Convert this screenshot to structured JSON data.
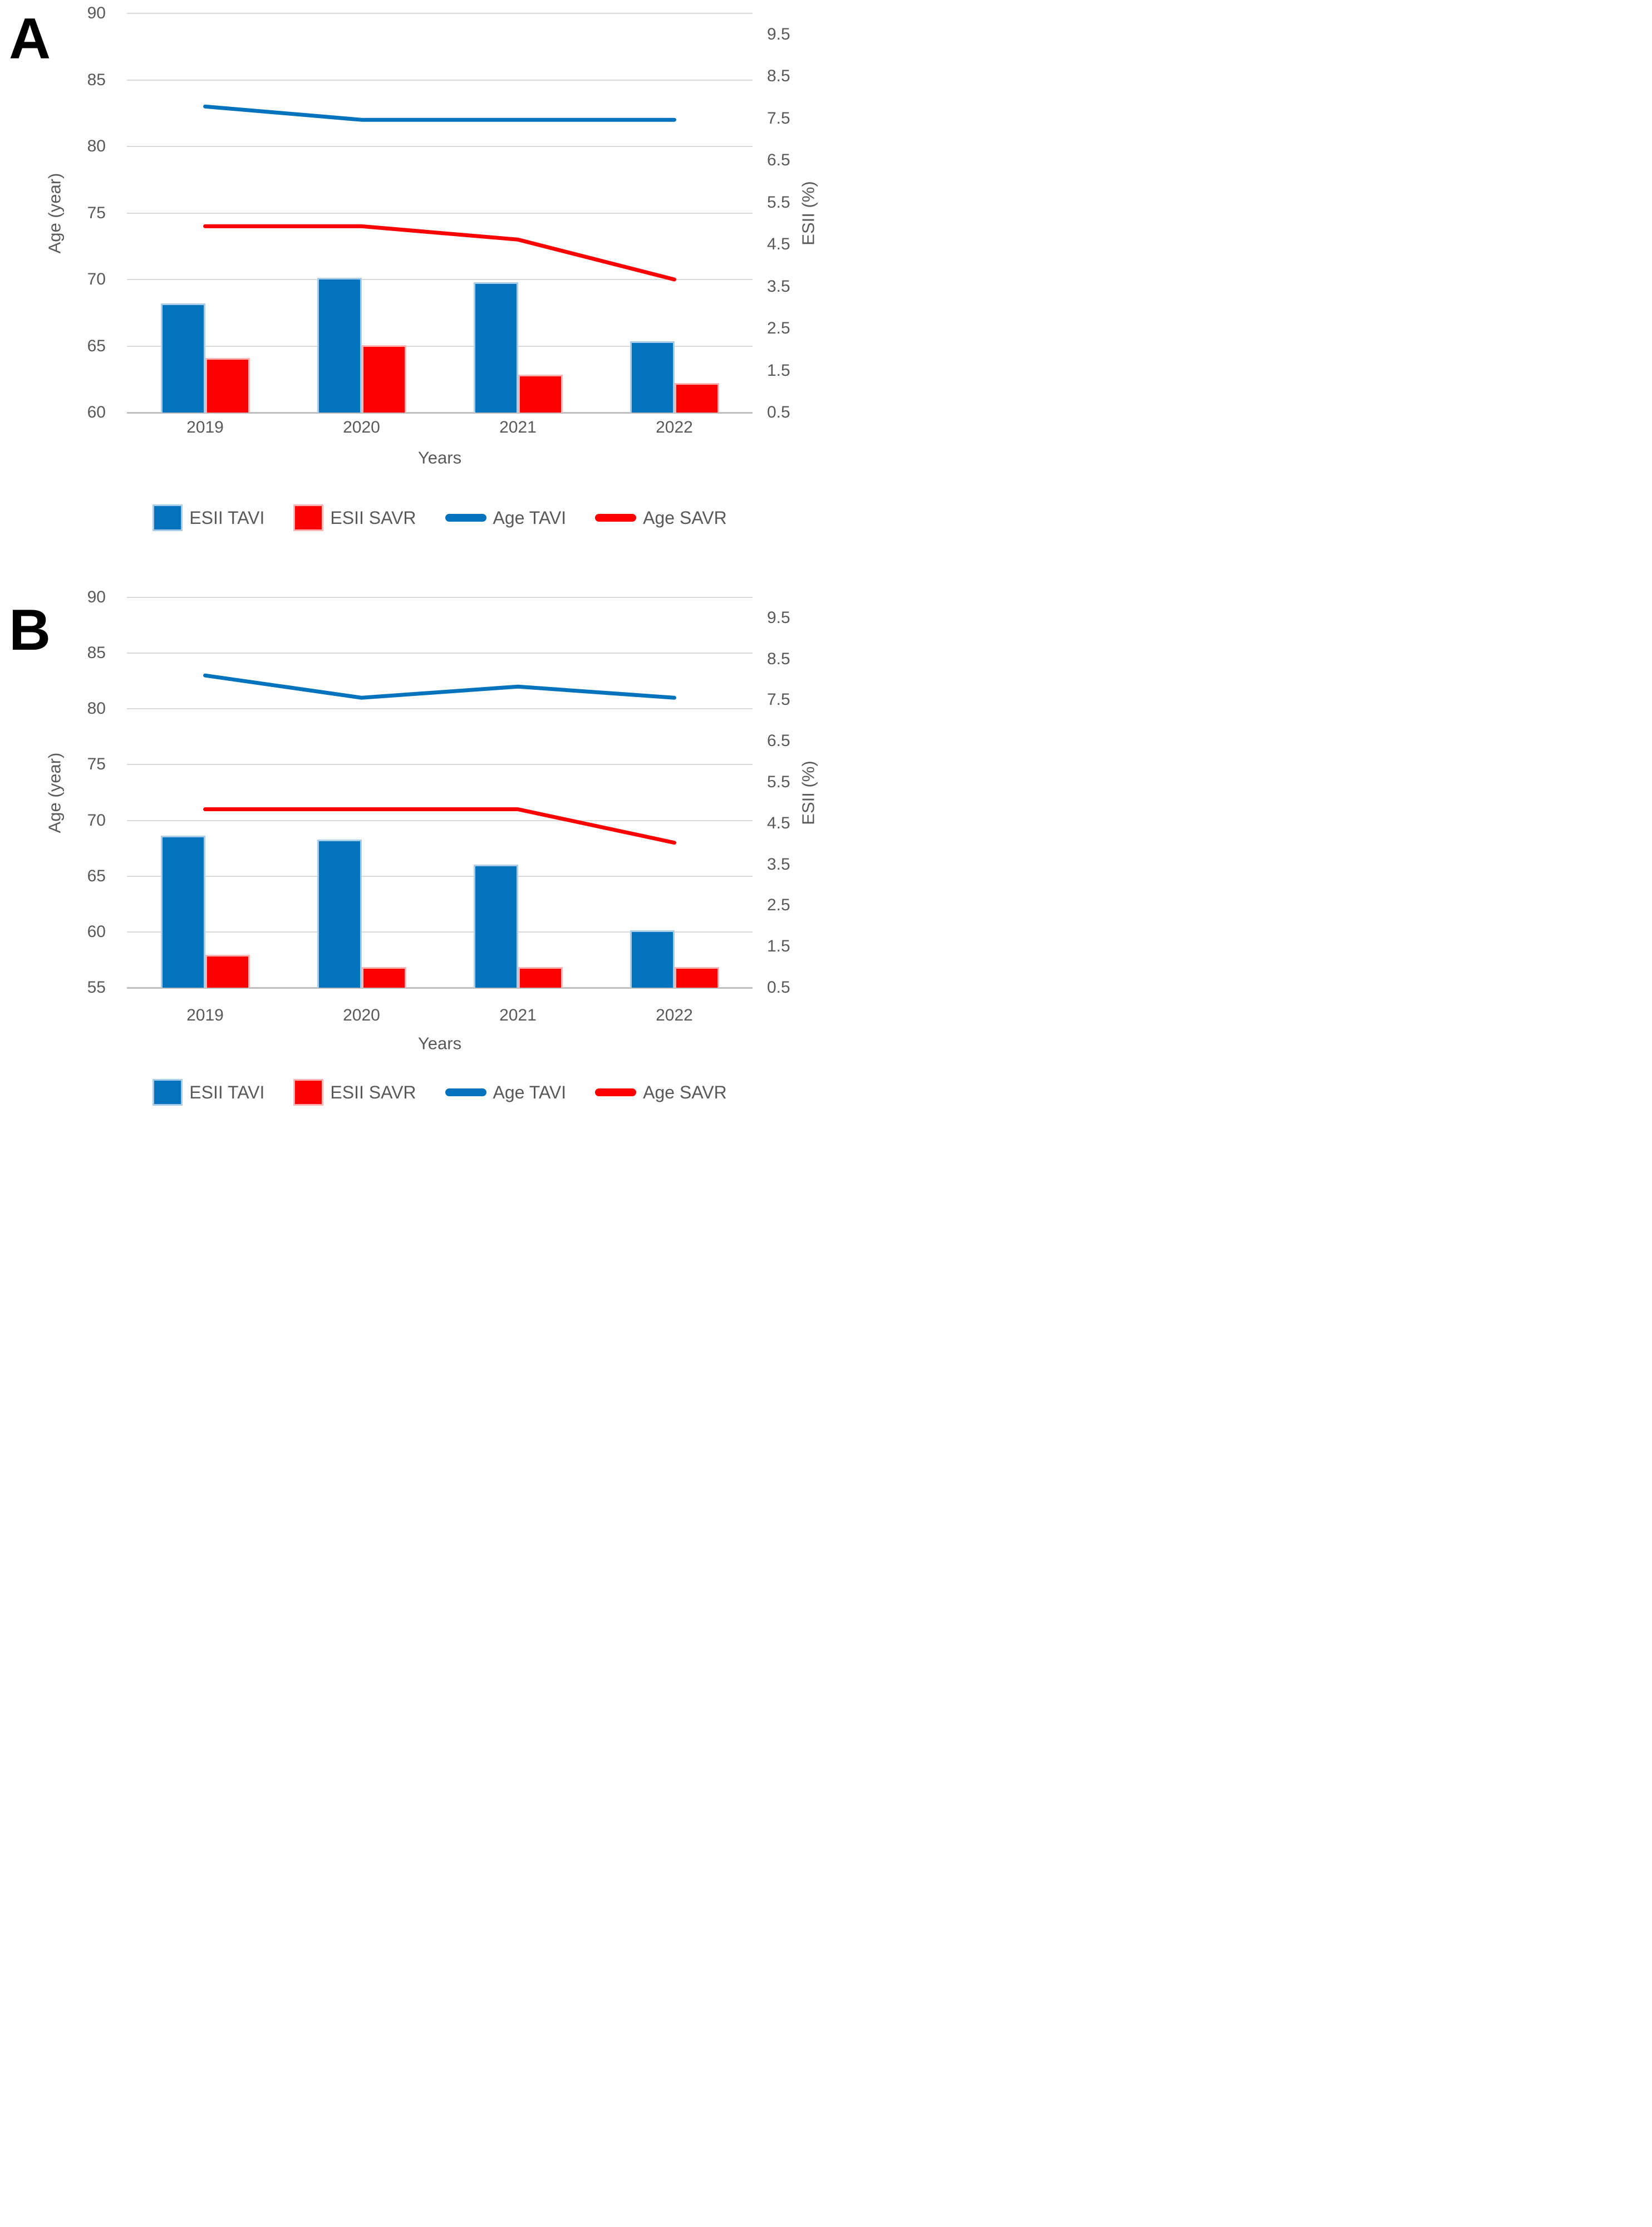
{
  "figure": {
    "panels_count": 2,
    "background": "#ffffff",
    "text_color": "#595959",
    "gridline_color": "#d9d9d9",
    "accent_blue": "#0473be",
    "accent_red": "#fc0101"
  },
  "chart_data": [
    {
      "type": "bar",
      "subtype": "combo-bar-line-dual-axis",
      "panel": "A",
      "categories": [
        "2019",
        "2020",
        "2021",
        "2022"
      ],
      "xlabel": "Years",
      "grid": true,
      "legend_position": "bottom",
      "left_axis": {
        "title": "Age (year)",
        "min": 60,
        "max": 90,
        "step": 5,
        "ticks": [
          "90",
          "85",
          "80",
          "75",
          "70",
          "65",
          "60"
        ]
      },
      "right_axis": {
        "title": "ESII (%)",
        "min": 0.5,
        "max": 10,
        "step": 1,
        "ticks": [
          "9.5",
          "8.5",
          "7.5",
          "6.5",
          "5.5",
          "4.5",
          "3.5",
          "2.5",
          "1.5",
          "0.5"
        ]
      },
      "series": [
        {
          "name": "ESII TAVI",
          "type": "bar",
          "axis": "right",
          "color": "#0473be",
          "edge": "#a9cce9",
          "values": [
            3.1,
            3.7,
            3.6,
            2.2
          ]
        },
        {
          "name": "ESII SAVR",
          "type": "bar",
          "axis": "right",
          "color": "#fc0101",
          "edge": "#ffb3b3",
          "values": [
            1.8,
            2.1,
            1.4,
            1.2
          ]
        },
        {
          "name": "Age TAVI",
          "type": "line",
          "axis": "left",
          "color": "#0473be",
          "values": [
            83,
            82,
            82,
            82
          ]
        },
        {
          "name": "Age SAVR",
          "type": "line",
          "axis": "left",
          "color": "#fc0101",
          "values": [
            74,
            74,
            73,
            70
          ]
        }
      ]
    },
    {
      "type": "bar",
      "subtype": "combo-bar-line-dual-axis",
      "panel": "B",
      "categories": [
        "2019",
        "2020",
        "2021",
        "2022"
      ],
      "xlabel": "Years",
      "grid": true,
      "legend_position": "bottom",
      "left_axis": {
        "title": "Age (year)",
        "min": 55,
        "max": 90,
        "step": 5,
        "ticks": [
          "90",
          "85",
          "80",
          "75",
          "70",
          "65",
          "60",
          "55"
        ]
      },
      "right_axis": {
        "title": "ESII (%)",
        "min": 0.5,
        "max": 10,
        "step": 1,
        "ticks": [
          "9.5",
          "8.5",
          "7.5",
          "6.5",
          "5.5",
          "4.5",
          "3.5",
          "2.5",
          "1.5",
          "0.5"
        ]
      },
      "series": [
        {
          "name": "ESII TAVI",
          "type": "bar",
          "axis": "right",
          "color": "#0473be",
          "edge": "#a9cce9",
          "values": [
            4.2,
            4.1,
            3.5,
            1.9
          ]
        },
        {
          "name": "ESII SAVR",
          "type": "bar",
          "axis": "right",
          "color": "#fc0101",
          "edge": "#ffb3b3",
          "values": [
            1.3,
            1.0,
            1.0,
            1.0
          ]
        },
        {
          "name": "Age TAVI",
          "type": "line",
          "axis": "left",
          "color": "#0473be",
          "values": [
            83,
            81,
            82,
            81
          ]
        },
        {
          "name": "Age SAVR",
          "type": "line",
          "axis": "left",
          "color": "#fc0101",
          "values": [
            71,
            71,
            71,
            68
          ]
        }
      ]
    }
  ]
}
